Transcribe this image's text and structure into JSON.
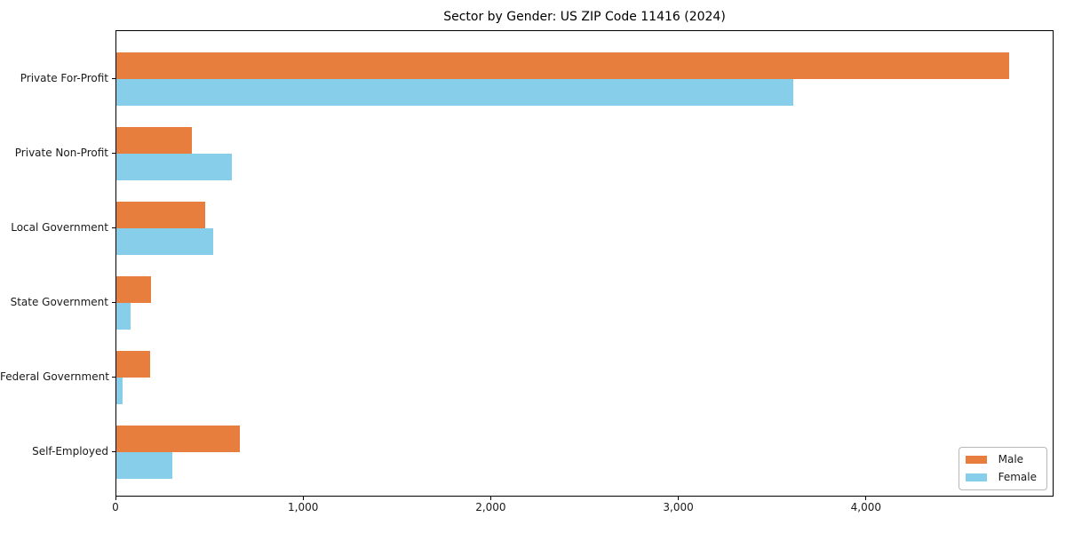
{
  "chart_data": {
    "type": "bar",
    "orientation": "horizontal",
    "title": "Sector by Gender: US ZIP Code 11416 (2024)",
    "categories": [
      "Private For-Profit",
      "Private Non-Profit",
      "Local Government",
      "State Government",
      "Federal Government",
      "Self-Employed"
    ],
    "series": [
      {
        "name": "Male",
        "color": "#E87E3E",
        "values": [
          4760,
          403,
          474,
          185,
          182,
          658
        ]
      },
      {
        "name": "Female",
        "color": "#87CEEB",
        "values": [
          3610,
          617,
          515,
          74,
          31,
          298
        ]
      }
    ],
    "xlabel": "",
    "ylabel": "",
    "xlim": [
      0,
      5000
    ],
    "x_ticks": [
      0,
      1000,
      2000,
      3000,
      4000
    ],
    "x_tick_labels": [
      "0",
      "1,000",
      "2,000",
      "3,000",
      "4,000"
    ],
    "grid": false,
    "legend_position": "lower right",
    "axis_color": "#000000"
  }
}
